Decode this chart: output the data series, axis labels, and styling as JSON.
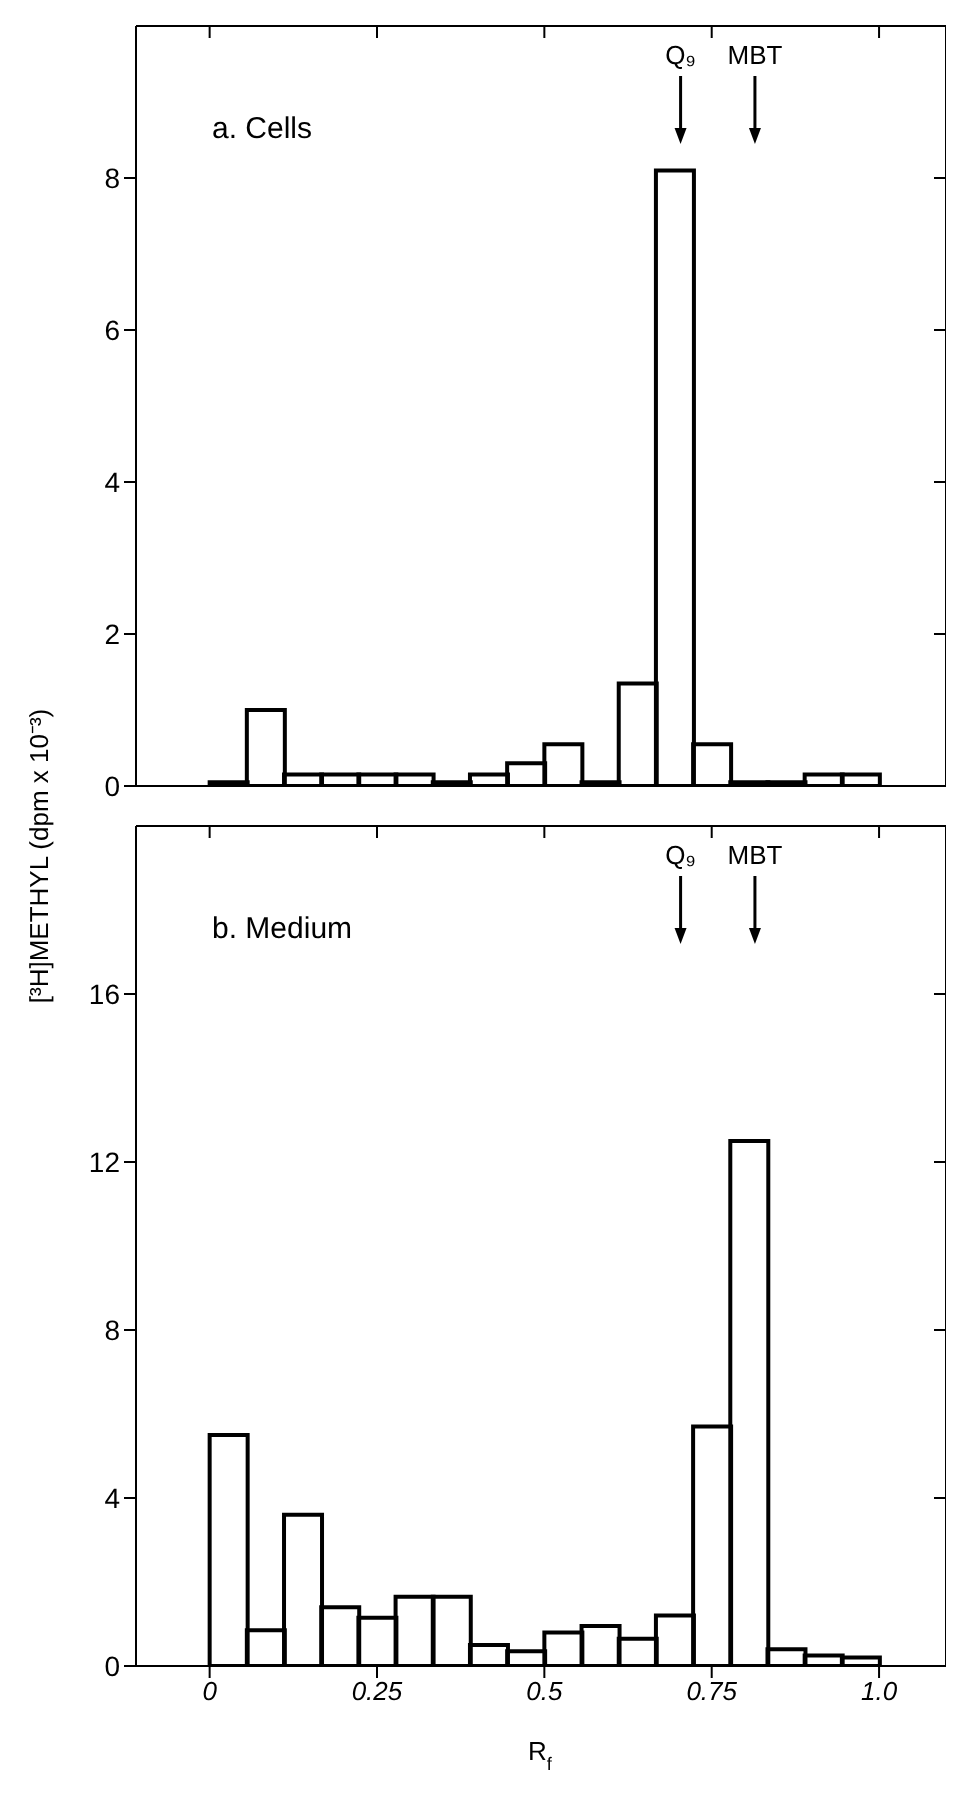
{
  "chart_data": [
    {
      "type": "histogram",
      "title": "a. Cells",
      "ylabel": "[³H]METHYL (dpm x 10⁻³)",
      "bins": [
        0,
        0.0556,
        0.1111,
        0.1667,
        0.2222,
        0.2778,
        0.3333,
        0.3889,
        0.4444,
        0.5,
        0.5556,
        0.6111,
        0.6667,
        0.7222,
        0.7778,
        0.8333,
        0.8889,
        0.9444,
        1
      ],
      "values": [
        0.05,
        1.0,
        0.15,
        0.15,
        0.15,
        0.15,
        0.05,
        0.15,
        0.3,
        0.55,
        0.05,
        1.35,
        8.1,
        0.55,
        0.05,
        0.05,
        0.15,
        0.15
      ],
      "color": "#000000",
      "xlim": [
        -0.11,
        1.1
      ],
      "ylim": [
        0,
        10
      ],
      "yticks": [
        0,
        2,
        4,
        6,
        8
      ],
      "xticks": [
        {
          "value": 0,
          "label": null
        },
        {
          "value": 0.25,
          "label": null
        },
        {
          "value": 0.5,
          "label": null
        },
        {
          "value": 0.75,
          "label": null
        },
        {
          "value": 1,
          "label": null
        }
      ],
      "tick_labels": "y",
      "grid": false,
      "legend": false,
      "annotations": [
        "Q₉",
        "MBT"
      ]
    },
    {
      "type": "histogram",
      "title": "b. Medium",
      "xlabel": "R$_{f}$",
      "bins": [
        0,
        0.0556,
        0.1111,
        0.1667,
        0.2222,
        0.2778,
        0.3333,
        0.3889,
        0.4444,
        0.5,
        0.5556,
        0.6111,
        0.6667,
        0.7222,
        0.7778,
        0.8333,
        0.8889,
        0.9444,
        1
      ],
      "values": [
        5.5,
        0.85,
        3.6,
        1.4,
        1.15,
        1.65,
        1.65,
        0.5,
        0.35,
        0.8,
        0.95,
        0.65,
        1.2,
        5.7,
        12.5,
        0.4,
        0.25,
        0.2
      ],
      "color": "#000000",
      "xlim": [
        -0.11,
        1.1
      ],
      "ylim": [
        0,
        20
      ],
      "yticks": [
        0,
        4,
        8,
        12,
        16
      ],
      "xticks": [
        0,
        0.25,
        0.5,
        0.75,
        {
          "value": 1,
          "label": "1.0"
        }
      ],
      "grid": false,
      "legend": false,
      "annotations": [
        "Q₉",
        "MBT"
      ]
    }
  ]
}
